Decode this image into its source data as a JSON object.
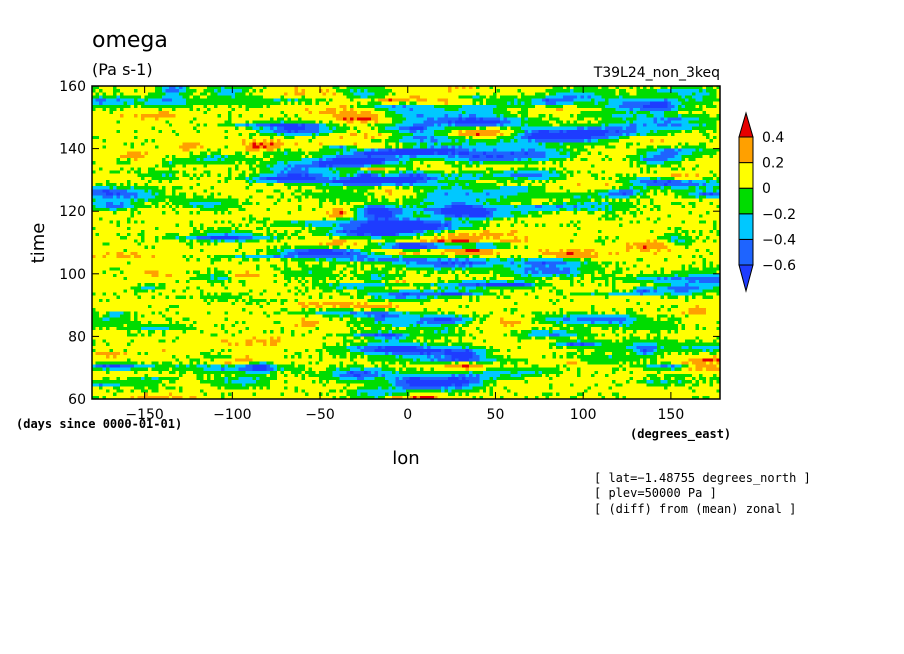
{
  "chart_data": {
    "type": "heatmap",
    "title": "omega",
    "units": "(Pa s-1)",
    "experiment": "T39L24_non_3keq",
    "xlabel": "lon",
    "x_units": "(degrees_east)",
    "ylabel": "time",
    "y_units": "(days since 0000-01-01)",
    "xlim": [
      -180,
      178
    ],
    "ylim": [
      60,
      160
    ],
    "x_ticks": [
      -150,
      -100,
      -50,
      0,
      50,
      100,
      150
    ],
    "x_tick_labels": [
      "−150",
      "−100",
      "−50",
      "0",
      "50",
      "100",
      "150"
    ],
    "y_ticks": [
      60,
      80,
      100,
      120,
      140,
      160
    ],
    "y_tick_labels": [
      "60",
      "80",
      "100",
      "120",
      "140",
      "160"
    ],
    "colorbar": {
      "levels": [
        -0.6,
        -0.4,
        -0.2,
        0,
        0.2,
        0.4
      ],
      "labels": [
        "−0.6",
        "−0.4",
        "−0.2",
        "0",
        "0.2",
        "0.4"
      ],
      "colors": [
        "#1e64ff",
        "#00c8ff",
        "#00dc00",
        "#ffff00",
        "#ffa000",
        "#e60000"
      ],
      "under_color": "#1e3cff",
      "over_color": "#e60000"
    },
    "annotations": [
      "[ lat=−1.48755 degrees_north ]",
      "[ plev=50000 Pa ]",
      "[ (diff) from (mean) zonal ]"
    ]
  }
}
